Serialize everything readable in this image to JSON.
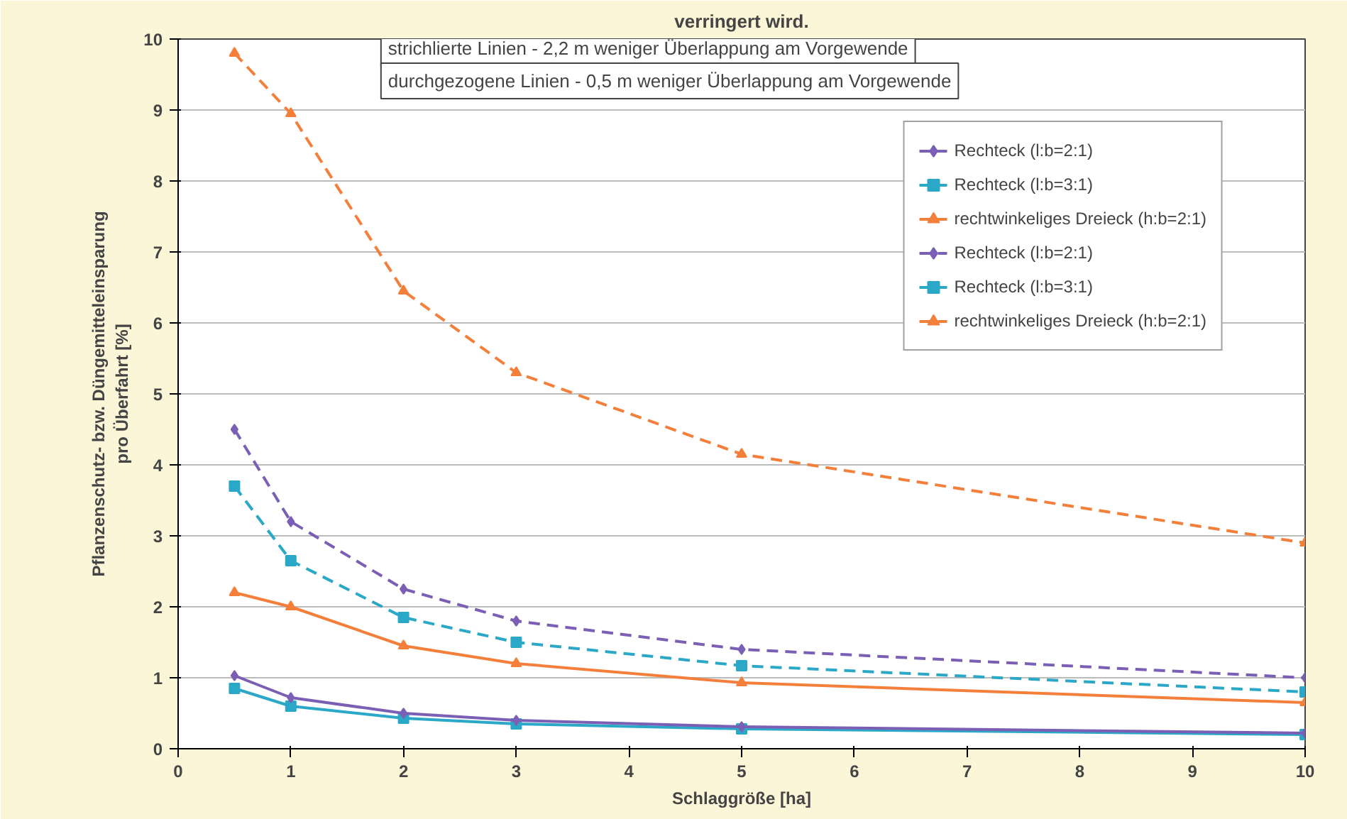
{
  "chart_data": {
    "type": "line",
    "title": "verringert wird.",
    "xlabel": "Schlaggröße [ha]",
    "ylabel": "Pflanzenschutz- bzw. Düngemitteleinsparung\npro Überfahrt [%]",
    "x": [
      0.5,
      1,
      2,
      3,
      5,
      10
    ],
    "series": [
      {
        "name": "Rechteck (l:b=2:1)",
        "color": "#7b5fb5",
        "marker": "diamond",
        "line_style": "solid",
        "values": [
          1.03,
          0.72,
          0.5,
          0.4,
          0.31,
          0.22
        ]
      },
      {
        "name": "Rechteck (l:b=3:1)",
        "color": "#2ba8c8",
        "marker": "square",
        "line_style": "solid",
        "values": [
          0.85,
          0.6,
          0.43,
          0.35,
          0.28,
          0.2
        ]
      },
      {
        "name": "rechtwinkeliges Dreieck (h:b=2:1)",
        "color": "#f47f3a",
        "marker": "triangle",
        "line_style": "solid",
        "values": [
          2.2,
          2.0,
          1.45,
          1.2,
          0.93,
          0.65
        ]
      },
      {
        "name": "Rechteck (l:b=2:1)",
        "color": "#7b5fb5",
        "marker": "diamond",
        "line_style": "dashed",
        "values": [
          4.5,
          3.2,
          2.25,
          1.8,
          1.4,
          1.0
        ]
      },
      {
        "name": "Rechteck (l:b=3:1)",
        "color": "#2ba8c8",
        "marker": "square",
        "line_style": "dashed",
        "values": [
          3.7,
          2.65,
          1.85,
          1.5,
          1.17,
          0.8
        ]
      },
      {
        "name": "rechtwinkeliges Dreieck (h:b=2:1)",
        "color": "#f47f3a",
        "marker": "triangle",
        "line_style": "dashed",
        "values": [
          9.8,
          8.95,
          6.45,
          5.3,
          4.15,
          2.9
        ]
      }
    ],
    "xlim": [
      0,
      10
    ],
    "xticks": [
      0,
      1,
      2,
      3,
      4,
      5,
      6,
      7,
      8,
      9,
      10
    ],
    "ylim": [
      0,
      10
    ],
    "yticks": [
      0,
      1,
      2,
      3,
      4,
      5,
      6,
      7,
      8,
      9,
      10
    ],
    "grid": "y",
    "legend": "top right",
    "annotations": [
      "strichlierte Linien - 2,2 m weniger Überlappung am Vorgewende",
      "durchgezogene Linien - 0,5 m weniger Überlappung am Vorgewende"
    ]
  }
}
